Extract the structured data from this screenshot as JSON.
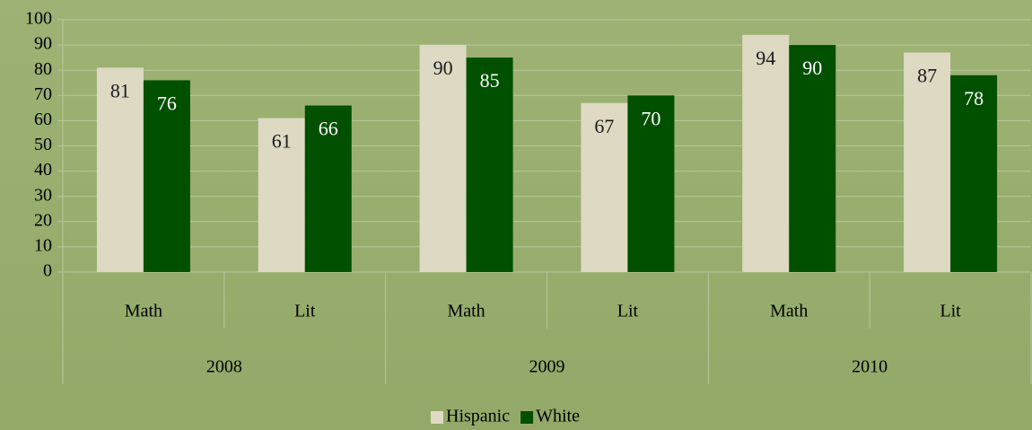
{
  "chart_data": {
    "type": "bar",
    "categories": [
      "Math",
      "Lit",
      "Math",
      "Lit",
      "Math",
      "Lit"
    ],
    "category_groups": [
      "2008",
      "2009",
      "2010"
    ],
    "series": [
      {
        "name": "Hispanic",
        "color": "#ddd9c3",
        "label_color": "#1a1a1a",
        "values": [
          81,
          61,
          90,
          67,
          94,
          87
        ]
      },
      {
        "name": "White",
        "color": "#005000",
        "label_color": "#ffffff",
        "values": [
          76,
          66,
          85,
          70,
          90,
          78
        ]
      }
    ],
    "ylim": [
      0,
      100
    ],
    "yticks": [
      0,
      10,
      20,
      30,
      40,
      50,
      60,
      70,
      80,
      90,
      100
    ],
    "grid": true,
    "legend": "bottom"
  }
}
